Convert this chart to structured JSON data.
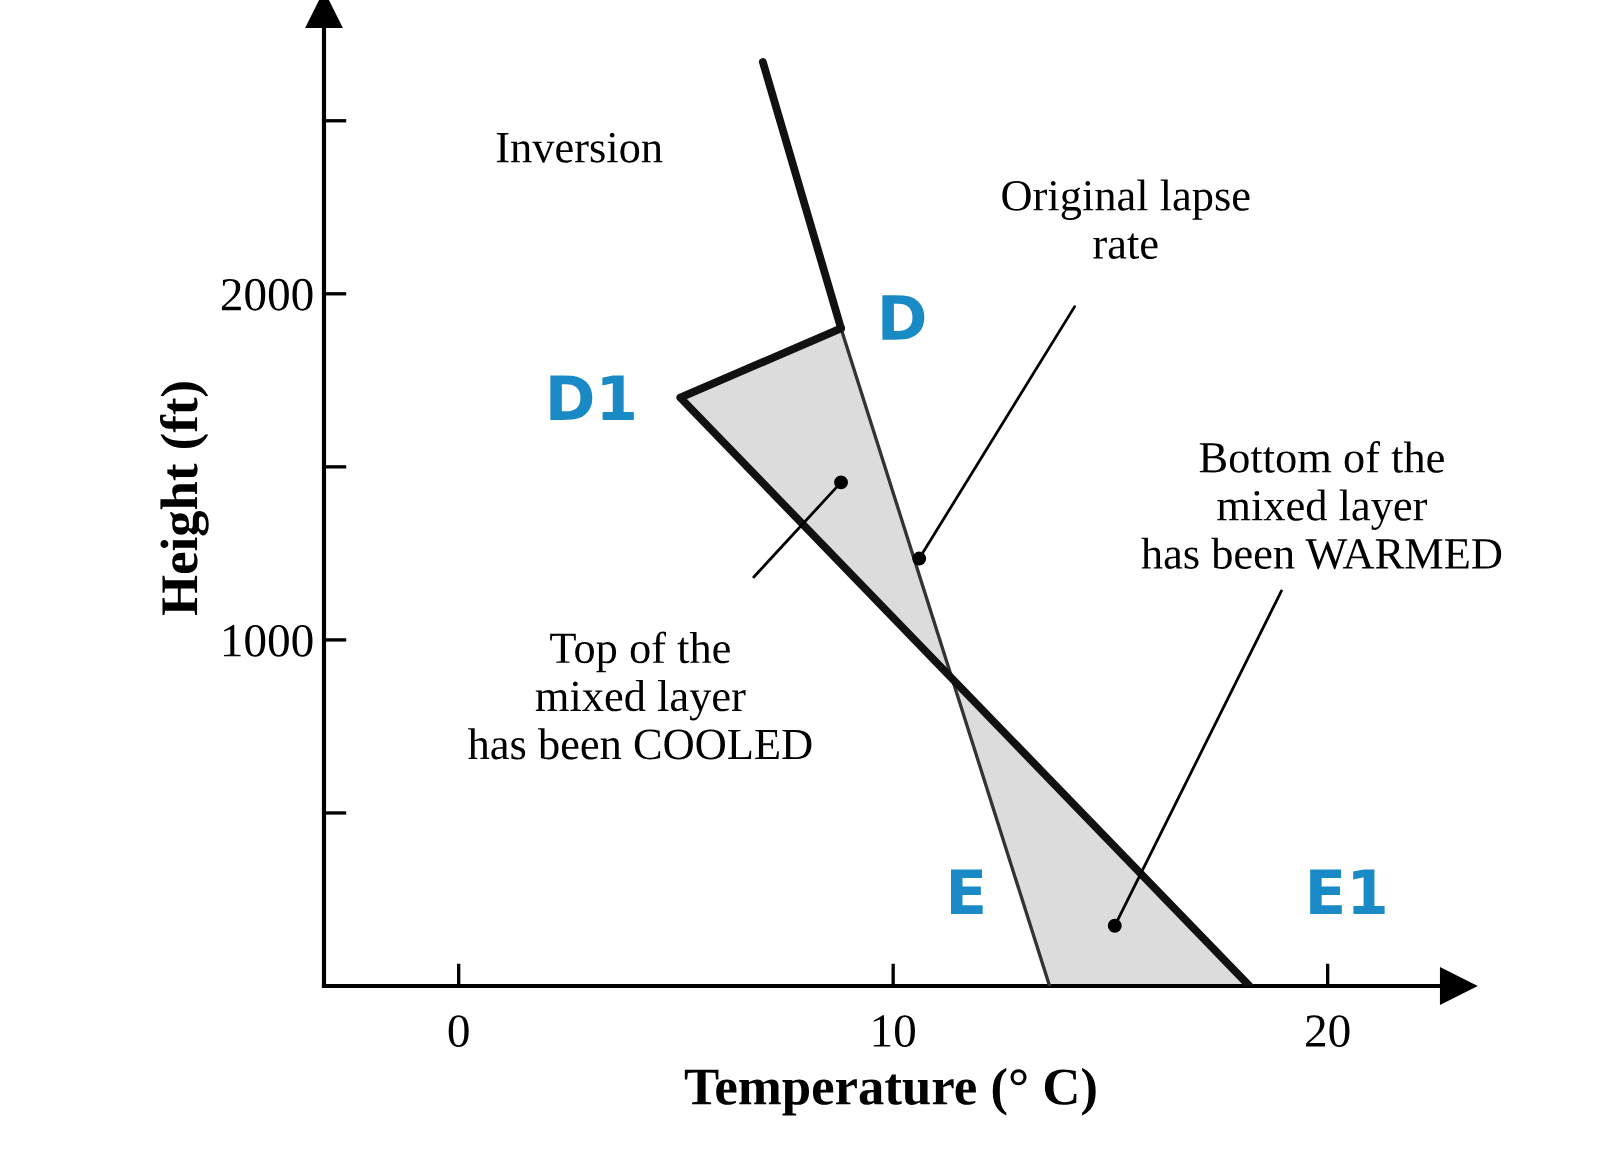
{
  "chart_data": {
    "type": "line",
    "xlabel": "Temperature (° C)",
    "ylabel": "Height (ft)",
    "xlim": [
      -3.1,
      23.0
    ],
    "ylim": [
      0,
      2820
    ],
    "xticks": [
      0,
      10,
      20
    ],
    "yticks": [
      {
        "value": 500,
        "label": null
      },
      1000,
      {
        "value": 1500,
        "label": null
      },
      2000,
      {
        "value": 2500,
        "label": null
      }
    ],
    "grid": false,
    "legend": false,
    "marker": "none",
    "line_style": "solid",
    "series": [
      {
        "color": "#111111",
        "x": [
          7.0,
          8.8
        ],
        "values": [
          2670,
          1900
        ]
      },
      {
        "color": "#333333",
        "x": [
          8.8,
          13.6
        ],
        "values": [
          1900,
          0
        ]
      },
      {
        "color": "#111111",
        "x": [
          8.8,
          5.1,
          18.2
        ],
        "values": [
          1900,
          1700,
          0
        ]
      }
    ],
    "annotations": [
      {
        "text": "Original lapse\nrate",
        "x": 10.6,
        "y": 1235
      },
      "Inversion",
      {
        "text": "Top of the\nmixed layer\nhas been COOLED",
        "x": 8.8,
        "y": 1455
      },
      {
        "text": "Bottom of the\nmixed layer\nhas been WARMED",
        "x": 15.1,
        "y": 174
      },
      {
        "text": "D",
        "x": 8.8,
        "y": 1900
      },
      {
        "text": "D1",
        "x": 5.1,
        "y": 1700
      },
      {
        "text": "E",
        "x": 13.6,
        "y": 0
      },
      {
        "text": "E1",
        "x": 18.2,
        "y": 0
      }
    ]
  }
}
